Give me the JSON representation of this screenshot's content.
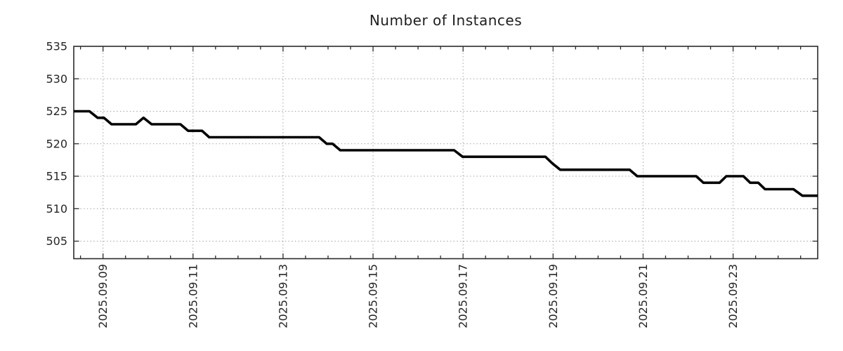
{
  "chart_data": {
    "type": "line",
    "title": "Number of Instances",
    "xlabel": "",
    "ylabel": "",
    "legend": "none",
    "grid": "dotted, at major x ticks and y ticks",
    "x_axis": {
      "unit": "days_since_2025.09.09_midnight",
      "range": [
        -0.65,
        15.88
      ],
      "major_ticks": [
        0,
        2,
        4,
        6,
        8,
        10,
        12,
        14
      ],
      "major_tick_labels": [
        "2025.09.09",
        "2025.09.11",
        "2025.09.13",
        "2025.09.15",
        "2025.09.17",
        "2025.09.19",
        "2025.09.21",
        "2025.09.23"
      ],
      "minor_tick_interval": 0.5,
      "label_rotation_deg": -90
    },
    "y_axis": {
      "range": [
        502.3,
        535
      ],
      "ticks": [
        505,
        510,
        515,
        520,
        525,
        530,
        535
      ],
      "tick_labels": [
        "505",
        "510",
        "515",
        "520",
        "525",
        "530",
        "535"
      ]
    },
    "series": [
      {
        "name": "instances",
        "color": "#000000",
        "points": [
          [
            -0.65,
            525
          ],
          [
            -0.3,
            525
          ],
          [
            -0.12,
            524
          ],
          [
            0.02,
            524
          ],
          [
            0.19,
            523
          ],
          [
            0.73,
            523
          ],
          [
            0.9,
            524
          ],
          [
            1.08,
            523
          ],
          [
            1.72,
            523
          ],
          [
            1.89,
            522
          ],
          [
            2.2,
            522
          ],
          [
            2.36,
            521
          ],
          [
            4.8,
            521
          ],
          [
            4.97,
            520
          ],
          [
            5.1,
            520
          ],
          [
            5.27,
            519
          ],
          [
            7.8,
            519
          ],
          [
            7.99,
            518
          ],
          [
            9.83,
            518
          ],
          [
            9.98,
            517
          ],
          [
            10.16,
            516
          ],
          [
            11.7,
            516
          ],
          [
            11.87,
            515
          ],
          [
            13.18,
            515
          ],
          [
            13.34,
            514
          ],
          [
            13.7,
            514
          ],
          [
            13.85,
            515
          ],
          [
            14.23,
            515
          ],
          [
            14.38,
            514
          ],
          [
            14.56,
            514
          ],
          [
            14.71,
            513
          ],
          [
            15.34,
            513
          ],
          [
            15.54,
            512
          ],
          [
            15.88,
            512
          ]
        ]
      }
    ],
    "colors": {
      "background": "#ffffff",
      "line": "#000000",
      "grid": "#a3a3a3",
      "axis": "#2b2b2b",
      "text": "#262626",
      "title_text": "#1f1f1f"
    }
  }
}
